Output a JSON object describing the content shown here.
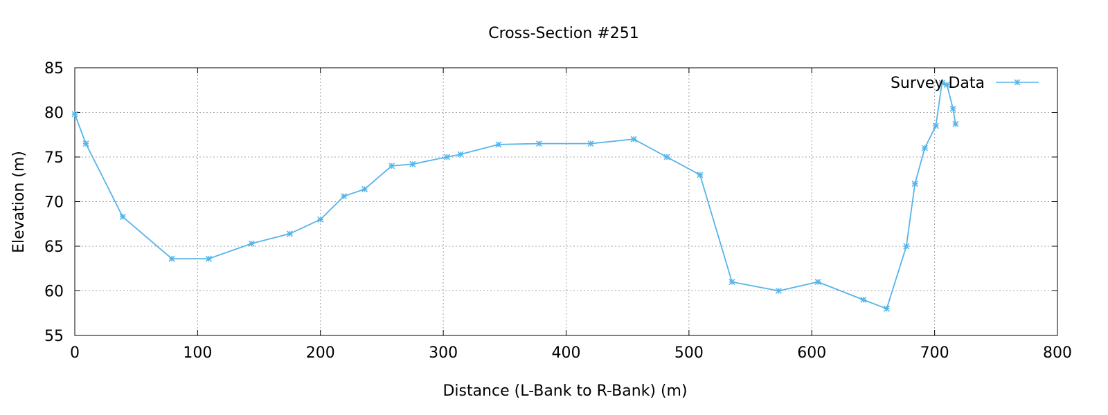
{
  "chart_data": {
    "type": "line",
    "title": "Cross-Section #251",
    "xlabel": "Distance (L-Bank to R-Bank) (m)",
    "ylabel": "Elevation (m)",
    "xlim": [
      0,
      800
    ],
    "ylim": [
      55,
      85
    ],
    "xticks": [
      0,
      100,
      200,
      300,
      400,
      500,
      600,
      700,
      800
    ],
    "yticks": [
      55,
      60,
      65,
      70,
      75,
      80,
      85
    ],
    "grid": true,
    "legend_position": "top-right",
    "series": [
      {
        "name": "Survey Data",
        "color": "#56b4e9",
        "marker": "asterisk",
        "points": [
          [
            0,
            79.8
          ],
          [
            9,
            76.5
          ],
          [
            39,
            68.3
          ],
          [
            79,
            63.6
          ],
          [
            109,
            63.6
          ],
          [
            144,
            65.3
          ],
          [
            175,
            66.4
          ],
          [
            200,
            68.0
          ],
          [
            219,
            70.6
          ],
          [
            236,
            71.4
          ],
          [
            258,
            74.0
          ],
          [
            275,
            74.2
          ],
          [
            303,
            75.0
          ],
          [
            314,
            75.3
          ],
          [
            345,
            76.4
          ],
          [
            378,
            76.5
          ],
          [
            420,
            76.5
          ],
          [
            455,
            77.0
          ],
          [
            482,
            75.0
          ],
          [
            509,
            73.0
          ],
          [
            535,
            61.0
          ],
          [
            573,
            60.0
          ],
          [
            605,
            61.0
          ],
          [
            642,
            59.0
          ],
          [
            661,
            58.0
          ],
          [
            677,
            65.0
          ],
          [
            684,
            72.0
          ],
          [
            692,
            76.0
          ],
          [
            701,
            78.5
          ],
          [
            706,
            83.3
          ],
          [
            710,
            83.1
          ],
          [
            715,
            80.4
          ],
          [
            717,
            78.7
          ]
        ]
      }
    ]
  }
}
